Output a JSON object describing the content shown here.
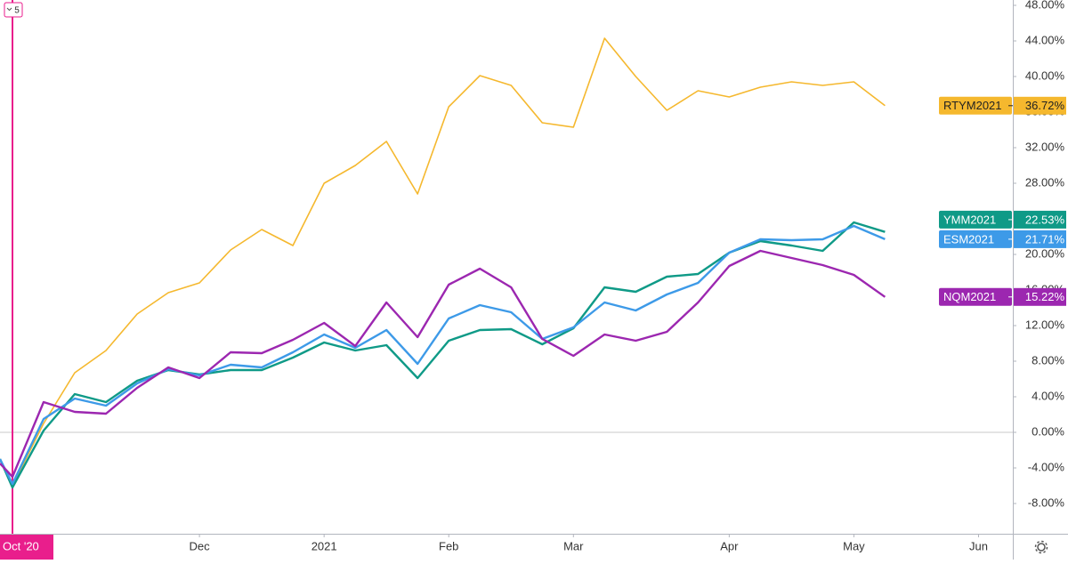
{
  "chart_data": {
    "type": "line",
    "marker_label": "5",
    "x": [
      -0.4,
      0,
      1,
      2,
      3,
      4,
      5,
      6,
      7,
      8,
      9,
      10,
      11,
      12,
      13,
      14,
      15,
      16,
      17,
      18,
      19,
      20,
      21,
      22,
      23,
      24,
      25,
      26,
      27,
      28
    ],
    "xlim": [
      -0.4,
      32.1
    ],
    "xticks": [
      {
        "value": 0,
        "label": "Oct '20"
      },
      {
        "value": 6,
        "label": "Dec"
      },
      {
        "value": 10,
        "label": "2021"
      },
      {
        "value": 14,
        "label": "Feb"
      },
      {
        "value": 18,
        "label": "Mar"
      },
      {
        "value": 23,
        "label": "Apr"
      },
      {
        "value": 27,
        "label": "May"
      },
      {
        "value": 31,
        "label": "Jun"
      }
    ],
    "ylim": [
      -11.4,
      48.6
    ],
    "yticks": [
      {
        "value": -8,
        "label": "-8.00%"
      },
      {
        "value": -4,
        "label": "-4.00%"
      },
      {
        "value": 0,
        "label": "0.00%"
      },
      {
        "value": 4,
        "label": "4.00%"
      },
      {
        "value": 8,
        "label": "8.00%"
      },
      {
        "value": 12,
        "label": "12.00%"
      },
      {
        "value": 16,
        "label": "16.00%"
      },
      {
        "value": 20,
        "label": "20.00%"
      },
      {
        "value": 24,
        "label": "24.00%"
      },
      {
        "value": 28,
        "label": "28.00%"
      },
      {
        "value": 32,
        "label": "32.00%"
      },
      {
        "value": 36,
        "label": "36.00%"
      },
      {
        "value": 40,
        "label": "40.00%"
      },
      {
        "value": 44,
        "label": "44.00%"
      },
      {
        "value": 48,
        "label": "48.00%"
      }
    ],
    "series": [
      {
        "name": "RTYM2021",
        "color": "#f5b82e",
        "last_label": "36.72%",
        "values": [
          -3,
          -6,
          1,
          6.7,
          9.2,
          13.3,
          15.7,
          16.8,
          20.5,
          22.8,
          21,
          28,
          30,
          32.7,
          26.8,
          36.6,
          40.1,
          39,
          34.8,
          34.3,
          44.3,
          40,
          36.2,
          38.4,
          37.7,
          38.8,
          39.4,
          39,
          39.4,
          36.72
        ]
      },
      {
        "name": "YMM2021",
        "color": "#0f9a87",
        "last_label": "22.53%",
        "values": [
          -3,
          -6.2,
          0.2,
          4.3,
          3.4,
          5.8,
          7,
          6.5,
          7,
          7,
          8.4,
          10.1,
          9.2,
          9.8,
          6.1,
          10.3,
          11.5,
          11.6,
          9.9,
          11.7,
          16.3,
          15.8,
          17.5,
          17.8,
          20.2,
          21.5,
          21,
          20.4,
          23.6,
          22.53
        ]
      },
      {
        "name": "ESM2021",
        "color": "#3d9ae8",
        "last_label": "21.71%",
        "values": [
          -3,
          -5.8,
          1.5,
          3.8,
          3,
          5.5,
          7.1,
          6.4,
          7.6,
          7.3,
          9,
          11,
          9.5,
          11.5,
          7.7,
          12.8,
          14.3,
          13.5,
          10.5,
          11.8,
          14.6,
          13.7,
          15.5,
          16.8,
          20.2,
          21.7,
          21.6,
          21.7,
          23.2,
          21.71
        ]
      },
      {
        "name": "NQM2021",
        "color": "#9c27b0",
        "last_label": "15.22%",
        "values": [
          -3.5,
          -5,
          3.4,
          2.3,
          2.1,
          5,
          7.3,
          6.1,
          9,
          8.9,
          10.4,
          12.3,
          9.7,
          14.6,
          10.7,
          16.6,
          18.4,
          16.3,
          10.5,
          8.6,
          11,
          10.3,
          11.3,
          14.6,
          18.7,
          20.4,
          19.6,
          18.8,
          17.7,
          15.22
        ]
      }
    ]
  }
}
